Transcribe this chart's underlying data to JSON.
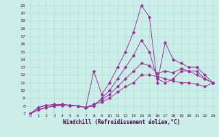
{
  "background_color": "#cceee8",
  "grid_color": "#b0ddd8",
  "line_color": "#993399",
  "xlabel": "Windchill (Refroidissement éolien,°C)",
  "xlim": [
    -0.5,
    23.5
  ],
  "ylim": [
    7,
    21.5
  ],
  "yticks": [
    7,
    8,
    9,
    10,
    11,
    12,
    13,
    14,
    15,
    16,
    17,
    18,
    19,
    20,
    21
  ],
  "xticks": [
    0,
    1,
    2,
    3,
    4,
    5,
    6,
    7,
    8,
    9,
    10,
    11,
    12,
    13,
    14,
    15,
    16,
    17,
    18,
    19,
    20,
    21,
    22,
    23
  ],
  "series1_x": [
    0,
    1,
    2,
    3,
    4,
    5,
    6,
    7,
    8,
    9,
    10,
    11,
    12,
    13,
    14,
    15,
    16,
    17,
    18,
    19,
    20,
    21,
    22,
    23
  ],
  "series1_y": [
    7.0,
    7.8,
    8.1,
    8.2,
    8.2,
    8.1,
    8.0,
    7.8,
    12.5,
    9.5,
    11.0,
    13.0,
    15.0,
    17.5,
    21.0,
    19.5,
    11.0,
    16.2,
    14.0,
    13.5,
    13.0,
    13.0,
    12.0,
    11.0
  ],
  "series2_x": [
    0,
    1,
    2,
    3,
    4,
    5,
    6,
    7,
    8,
    9,
    10,
    11,
    12,
    13,
    14,
    15,
    16,
    17,
    18,
    19,
    20,
    21,
    22,
    23
  ],
  "series2_y": [
    7.0,
    7.8,
    8.1,
    8.1,
    8.2,
    8.1,
    8.0,
    7.8,
    8.0,
    9.0,
    10.0,
    11.5,
    13.0,
    14.5,
    16.5,
    15.0,
    11.5,
    11.0,
    11.5,
    12.5,
    12.5,
    12.5,
    11.5,
    11.0
  ],
  "series3_x": [
    0,
    1,
    2,
    3,
    4,
    5,
    6,
    7,
    8,
    9,
    10,
    11,
    12,
    13,
    14,
    15,
    16,
    17,
    18,
    19,
    20,
    21,
    22,
    23
  ],
  "series3_y": [
    7.0,
    7.5,
    7.8,
    8.0,
    8.1,
    8.1,
    8.0,
    7.8,
    8.2,
    8.8,
    9.5,
    10.5,
    11.5,
    12.5,
    13.5,
    13.2,
    12.2,
    12.5,
    12.3,
    12.8,
    12.5,
    12.0,
    11.5,
    11.0
  ],
  "series4_x": [
    0,
    1,
    2,
    3,
    4,
    5,
    6,
    7,
    8,
    9,
    10,
    11,
    12,
    13,
    14,
    15,
    16,
    17,
    18,
    19,
    20,
    21,
    22,
    23
  ],
  "series4_y": [
    7.0,
    7.5,
    7.8,
    8.0,
    8.1,
    8.1,
    8.0,
    7.8,
    8.2,
    8.5,
    9.0,
    9.8,
    10.5,
    11.0,
    12.0,
    12.0,
    11.8,
    11.5,
    11.2,
    11.0,
    11.0,
    10.8,
    10.5,
    11.0
  ]
}
